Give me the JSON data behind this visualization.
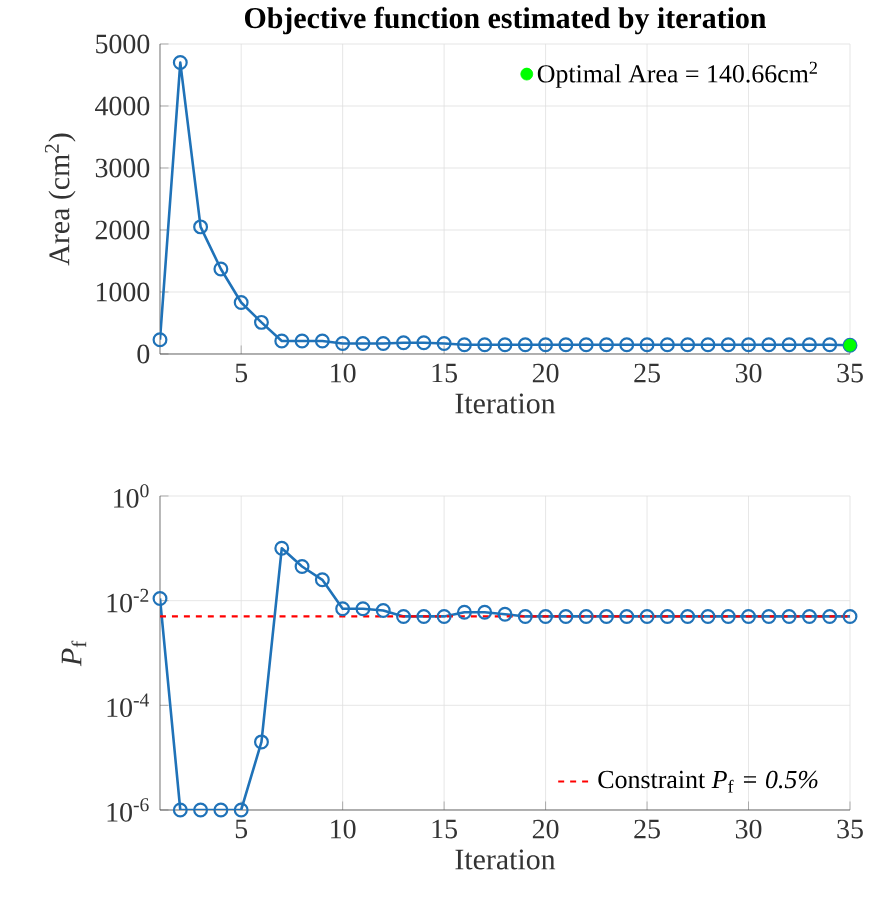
{
  "chart_data": [
    {
      "type": "line",
      "title": "Objective function estimated by iteration",
      "xlabel": "Iteration",
      "ylabel": "Area (cm$^{2}$)",
      "x": [
        1,
        2,
        3,
        4,
        5,
        6,
        7,
        8,
        9,
        10,
        11,
        12,
        13,
        14,
        15,
        16,
        17,
        18,
        19,
        20,
        21,
        22,
        23,
        24,
        25,
        26,
        27,
        28,
        29,
        30,
        31,
        32,
        33,
        34,
        35
      ],
      "xlim": [
        1,
        35
      ],
      "xticks": [
        5,
        10,
        15,
        20,
        25,
        30,
        35
      ],
      "ylim": [
        0,
        5000
      ],
      "yticks": [
        0,
        1000,
        2000,
        3000,
        4000,
        5000
      ],
      "grid": true,
      "legend": "top right",
      "marker": "circle",
      "line_style": "solid",
      "series": [
        {
          "color": "#1f72b8",
          "values": [
            230,
            4700,
            2050,
            1370,
            830,
            510,
            210,
            210,
            210,
            170,
            170,
            170,
            180,
            180,
            170,
            150,
            150,
            150,
            150,
            150,
            150,
            150,
            150,
            150,
            150,
            150,
            150,
            150,
            150,
            150,
            150,
            150,
            150,
            150,
            140
          ]
        },
        {
          "type": "scatter",
          "name": "Optimal Area = 140.66cm$^{2}$",
          "color": "#00ff00",
          "x": [
            35
          ],
          "values": [
            140.66
          ]
        }
      ]
    },
    {
      "type": "line",
      "xlabel": "Iteration",
      "ylabel": "*P*$_{f}$",
      "x": [
        1,
        2,
        3,
        4,
        5,
        6,
        7,
        8,
        9,
        10,
        11,
        12,
        13,
        14,
        15,
        16,
        17,
        18,
        19,
        20,
        21,
        22,
        23,
        24,
        25,
        26,
        27,
        28,
        29,
        30,
        31,
        32,
        33,
        34,
        35
      ],
      "xlim": [
        1,
        35
      ],
      "xticks": [
        5,
        10,
        15,
        20,
        25,
        30,
        35
      ],
      "ylim": [
        1e-06,
        1
      ],
      "yticks": [
        {
          "value": 1e-06,
          "label": "10$^{-6}$"
        },
        {
          "value": 0.0001,
          "label": "10$^{-4}$"
        },
        {
          "value": 0.01,
          "label": "10$^{-2}$"
        },
        {
          "value": 1,
          "label": "10$^{0}$"
        }
      ],
      "log": "y",
      "grid": true,
      "legend": "bottom right",
      "marker": "circle",
      "line_style": "solid",
      "series": [
        {
          "color": "#1f72b8",
          "values": [
            0.011,
            1e-06,
            1e-06,
            1e-06,
            1e-06,
            2e-05,
            0.1,
            0.045,
            0.025,
            0.007,
            0.007,
            0.0065,
            0.005,
            0.005,
            0.005,
            0.006,
            0.006,
            0.0055,
            0.005,
            0.005,
            0.005,
            0.005,
            0.005,
            0.005,
            0.005,
            0.005,
            0.005,
            0.005,
            0.005,
            0.005,
            0.005,
            0.005,
            0.005,
            0.005,
            0.005
          ]
        }
      ],
      "ref_lines": [
        {
          "axis": "y",
          "value": 0.005,
          "label": "Constraint *P*$_{f}$ *= 0.5%*",
          "color": "#ff0000",
          "line_style": "dashed"
        }
      ]
    }
  ]
}
